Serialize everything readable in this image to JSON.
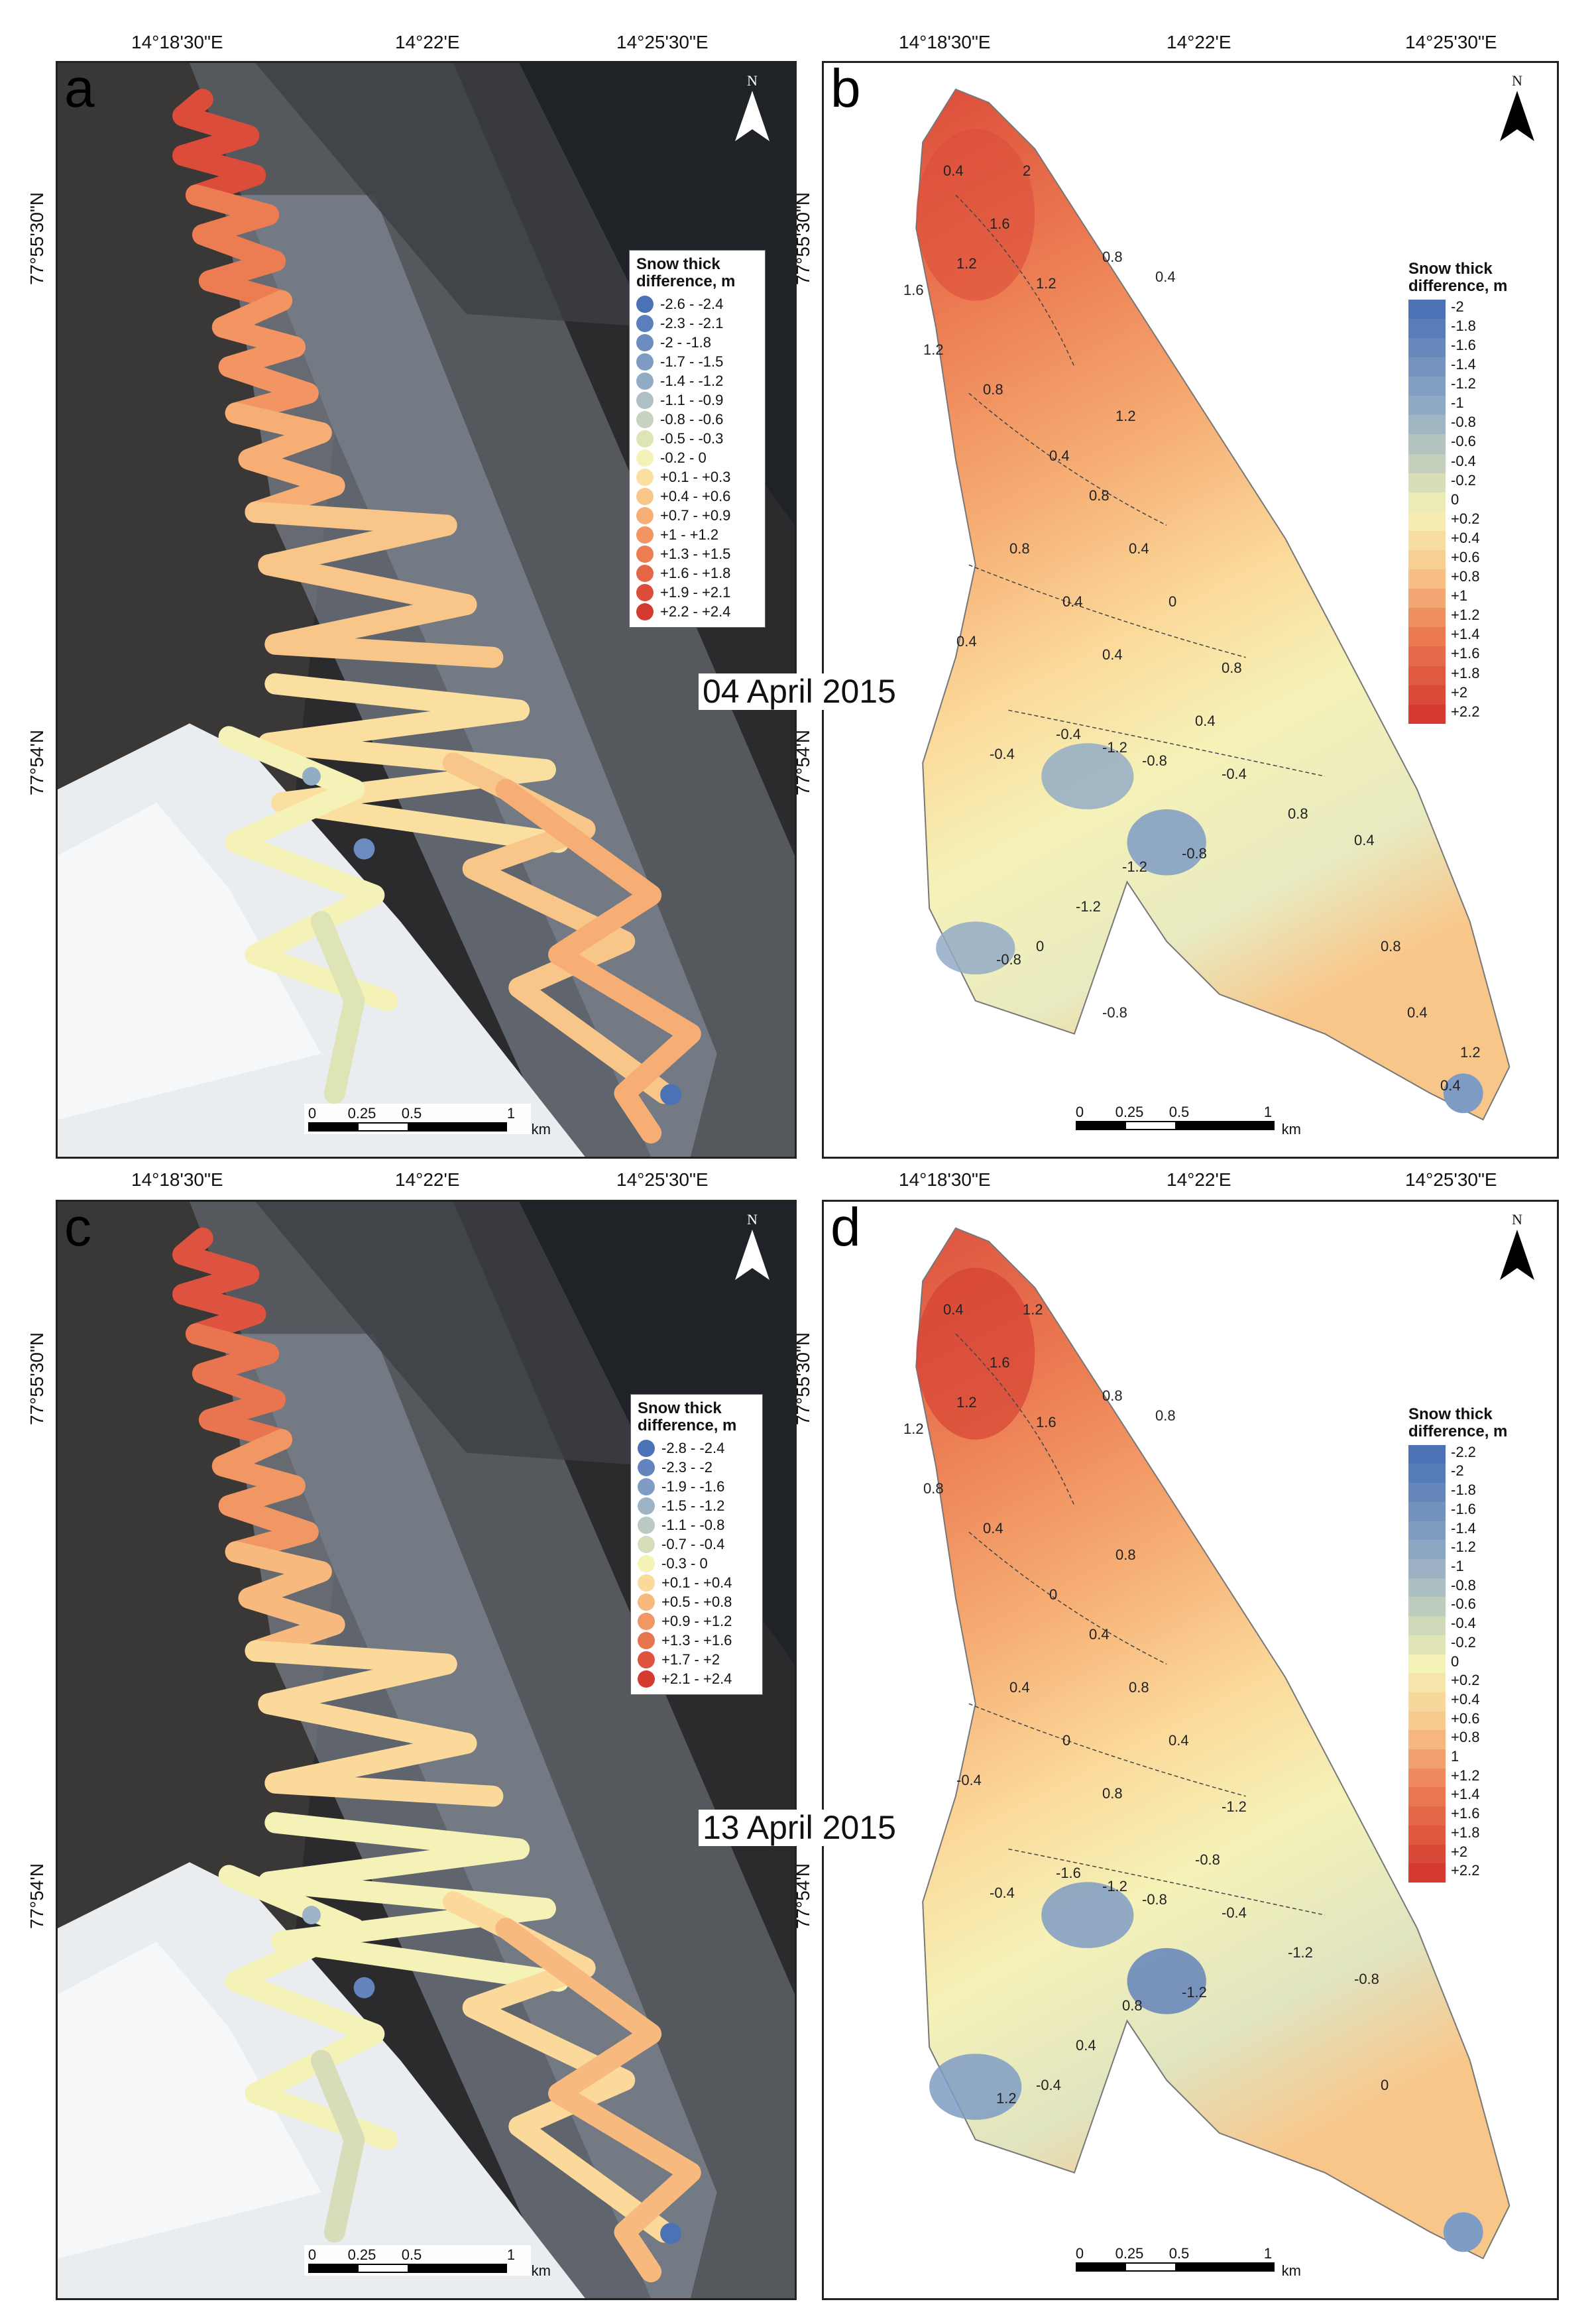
{
  "ticks": {
    "lon": [
      "14°18'30\"E",
      "14°22'E",
      "14°25'30\"E"
    ],
    "lat_top": [
      "77°55'30\"N",
      "77°54'N"
    ]
  },
  "dates": {
    "upper": "04 April 2015",
    "lower": "13 April 2015"
  },
  "panels": {
    "a": {
      "label": "a",
      "north": "N",
      "legend": {
        "title": "Snow thick difference, m",
        "items": [
          {
            "range": "-2.6 - -2.4",
            "color": "#4a72b5"
          },
          {
            "range": "-2.3 - -2.1",
            "color": "#5a7fba"
          },
          {
            "range": "-2 - -1.8",
            "color": "#6a8cbf"
          },
          {
            "range": "-1.7 - -1.5",
            "color": "#7e9bc4"
          },
          {
            "range": "-1.4 - -1.2",
            "color": "#93acc6"
          },
          {
            "range": "-1.1 - -0.9",
            "color": "#aebfc5"
          },
          {
            "range": "-0.8 - -0.6",
            "color": "#c8d3bf"
          },
          {
            "range": "-0.5 - -0.3",
            "color": "#dfe4b6"
          },
          {
            "range": "-0.2 - 0",
            "color": "#f5f2b8"
          },
          {
            "range": "+0.1 - +0.3",
            "color": "#fbdfa0"
          },
          {
            "range": "+0.4 - +0.6",
            "color": "#f9c689"
          },
          {
            "range": "+0.7 - +0.9",
            "color": "#f6ae74"
          },
          {
            "range": "+1 - +1.2",
            "color": "#f29562"
          },
          {
            "range": "+1.3 - +1.5",
            "color": "#ec7d53"
          },
          {
            "range": "+1.6 - +1.8",
            "color": "#e56547"
          },
          {
            "range": "+1.9 - +2.1",
            "color": "#dc4c3a"
          },
          {
            "range": "+2.2 - +2.4",
            "color": "#d43a30"
          }
        ]
      },
      "scale": {
        "labels": [
          "0",
          "0.25",
          "0.5",
          "1"
        ],
        "unit": "km"
      }
    },
    "b": {
      "label": "b",
      "north": "N",
      "legend": {
        "title": "Snow thick difference, m",
        "ramp": [
          "-2",
          "-1.8",
          "-1.6",
          "-1.4",
          "-1.2",
          "-1",
          "-0.8",
          "-0.6",
          "-0.4",
          "-0.2",
          "0",
          "+0.2",
          "+0.4",
          "+0.6",
          "+0.8",
          "+1",
          "+1.2",
          "+1.4",
          "+1.6",
          "+1.8",
          "+2",
          "+2.2"
        ]
      },
      "scale": {
        "labels": [
          "0",
          "0.25",
          "0.5",
          "1"
        ],
        "unit": "km"
      },
      "contours": [
        "0.4",
        "1.2",
        "1.6",
        "2",
        "1.2",
        "1.6",
        "1.2",
        "0.8",
        "0.4",
        "0.8",
        "1.2",
        "0.4",
        "0.8",
        "0.4",
        "0.8",
        "0.4",
        "0",
        "0.4",
        "0.4",
        "0.8",
        "0.4",
        "-0.4",
        "-0.4",
        "-1.2",
        "-0.8",
        "-0.4",
        "0.8",
        "0.4",
        "-0.8",
        "-1.2",
        "-1.2",
        "-0.8",
        "0",
        "0.8",
        "0.4",
        "1.2",
        "0.4",
        "-0.8"
      ]
    },
    "c": {
      "label": "c",
      "north": "N",
      "legend": {
        "title": "Snow thick difference, m",
        "items": [
          {
            "range": "-2.8 - -2.4",
            "color": "#4a72b5"
          },
          {
            "range": "-2.3 - -2",
            "color": "#6384bc"
          },
          {
            "range": "-1.9 - -1.6",
            "color": "#7f9cc4"
          },
          {
            "range": "-1.5 - -1.2",
            "color": "#9db3c6"
          },
          {
            "range": "-1.1 - -0.8",
            "color": "#bcc9c2"
          },
          {
            "range": "-0.7 - -0.4",
            "color": "#d8ddb9"
          },
          {
            "range": "-0.3 - 0",
            "color": "#f5f2b8"
          },
          {
            "range": "+0.1 - +0.4",
            "color": "#fbd99a"
          },
          {
            "range": "+0.5 - +0.8",
            "color": "#f7b97d"
          },
          {
            "range": "+0.9 - +1.2",
            "color": "#f19763"
          },
          {
            "range": "+1.3 - +1.6",
            "color": "#e87450"
          },
          {
            "range": "+1.7 - +2",
            "color": "#dd5340"
          },
          {
            "range": "+2.1 - +2.4",
            "color": "#d43a30"
          }
        ]
      },
      "scale": {
        "labels": [
          "0",
          "0.25",
          "0.5",
          "1"
        ],
        "unit": "km"
      }
    },
    "d": {
      "label": "d",
      "north": "N",
      "legend": {
        "title": "Snow thick difference, m",
        "ramp": [
          "-2.2",
          "-2",
          "-1.8",
          "-1.6",
          "-1.4",
          "-1.2",
          "-1",
          "-0.8",
          "-0.6",
          "-0.4",
          "-0.2",
          "0",
          "+0.2",
          "+0.4",
          "+0.6",
          "+0.8",
          "1",
          "+1.2",
          "+1.4",
          "+1.6",
          "+1.8",
          "+2",
          "+2.2"
        ]
      },
      "scale": {
        "labels": [
          "0",
          "0.25",
          "0.5",
          "1"
        ],
        "unit": "km"
      },
      "contours": [
        "0.4",
        "1.2",
        "1.6",
        "1.2",
        "0.8",
        "1.2",
        "1.6",
        "0.8",
        "0.8",
        "0.4",
        "0.8",
        "0",
        "0.4",
        "0.8",
        "0.4",
        "0",
        "0.4",
        "0.8",
        "-0.4",
        "-1.2",
        "-0.8",
        "-0.4",
        "-1.6",
        "-1.2",
        "-0.8",
        "-0.4",
        "-1.2",
        "-0.8",
        "-1.2",
        "0.8",
        "0.4",
        "1.2",
        "-0.4",
        "0"
      ]
    }
  }
}
